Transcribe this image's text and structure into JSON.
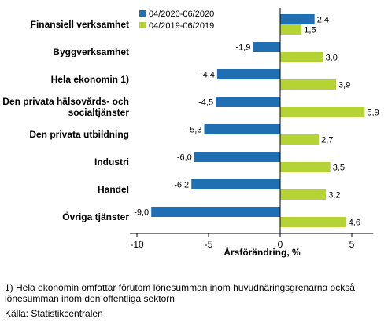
{
  "chart_data": {
    "type": "bar",
    "orientation": "horizontal",
    "categories": [
      "Finansiell verksamhet",
      "Byggverksamhet",
      "Hela ekonomin 1)",
      "Den privata hälsovårds- och socialtjänster",
      "Den privata utbildning",
      "Industri",
      "Handel",
      "Övriga tjänster"
    ],
    "series": [
      {
        "name": "04/2020-06/2020",
        "color": "#1f6fb2",
        "values": [
          2.4,
          -1.9,
          -4.4,
          -4.5,
          -5.3,
          -6.0,
          -6.2,
          -9.0
        ],
        "labels": [
          "2,4",
          "-1,9",
          "-4,4",
          "-4,5",
          "-5,3",
          "-6,0",
          "-6,2",
          "-9,0"
        ]
      },
      {
        "name": "04/2019-06/2019",
        "color": "#b5d334",
        "values": [
          1.5,
          3.0,
          3.9,
          5.9,
          2.7,
          3.5,
          3.2,
          4.6
        ],
        "labels": [
          "1,5",
          "3,0",
          "3,9",
          "5,9",
          "2,7",
          "3,5",
          "3,2",
          "4,6"
        ]
      }
    ],
    "xlim": [
      -10.5,
      6.5
    ],
    "xticks": [
      -10,
      -5,
      0,
      5
    ],
    "xtick_labels": [
      "-10",
      "-5",
      "0",
      "5"
    ],
    "xlabel": "Årsförändring, %",
    "legend_position": "top",
    "grid": false
  },
  "footnote_line1": "1) Hela ekonomin omfattar förutom lönesumman inom huvudnäringsgrenarna också",
  "footnote_line2": "lönesumman inom den offentliga sektorn",
  "source": "Källa: Statistikcentralen"
}
